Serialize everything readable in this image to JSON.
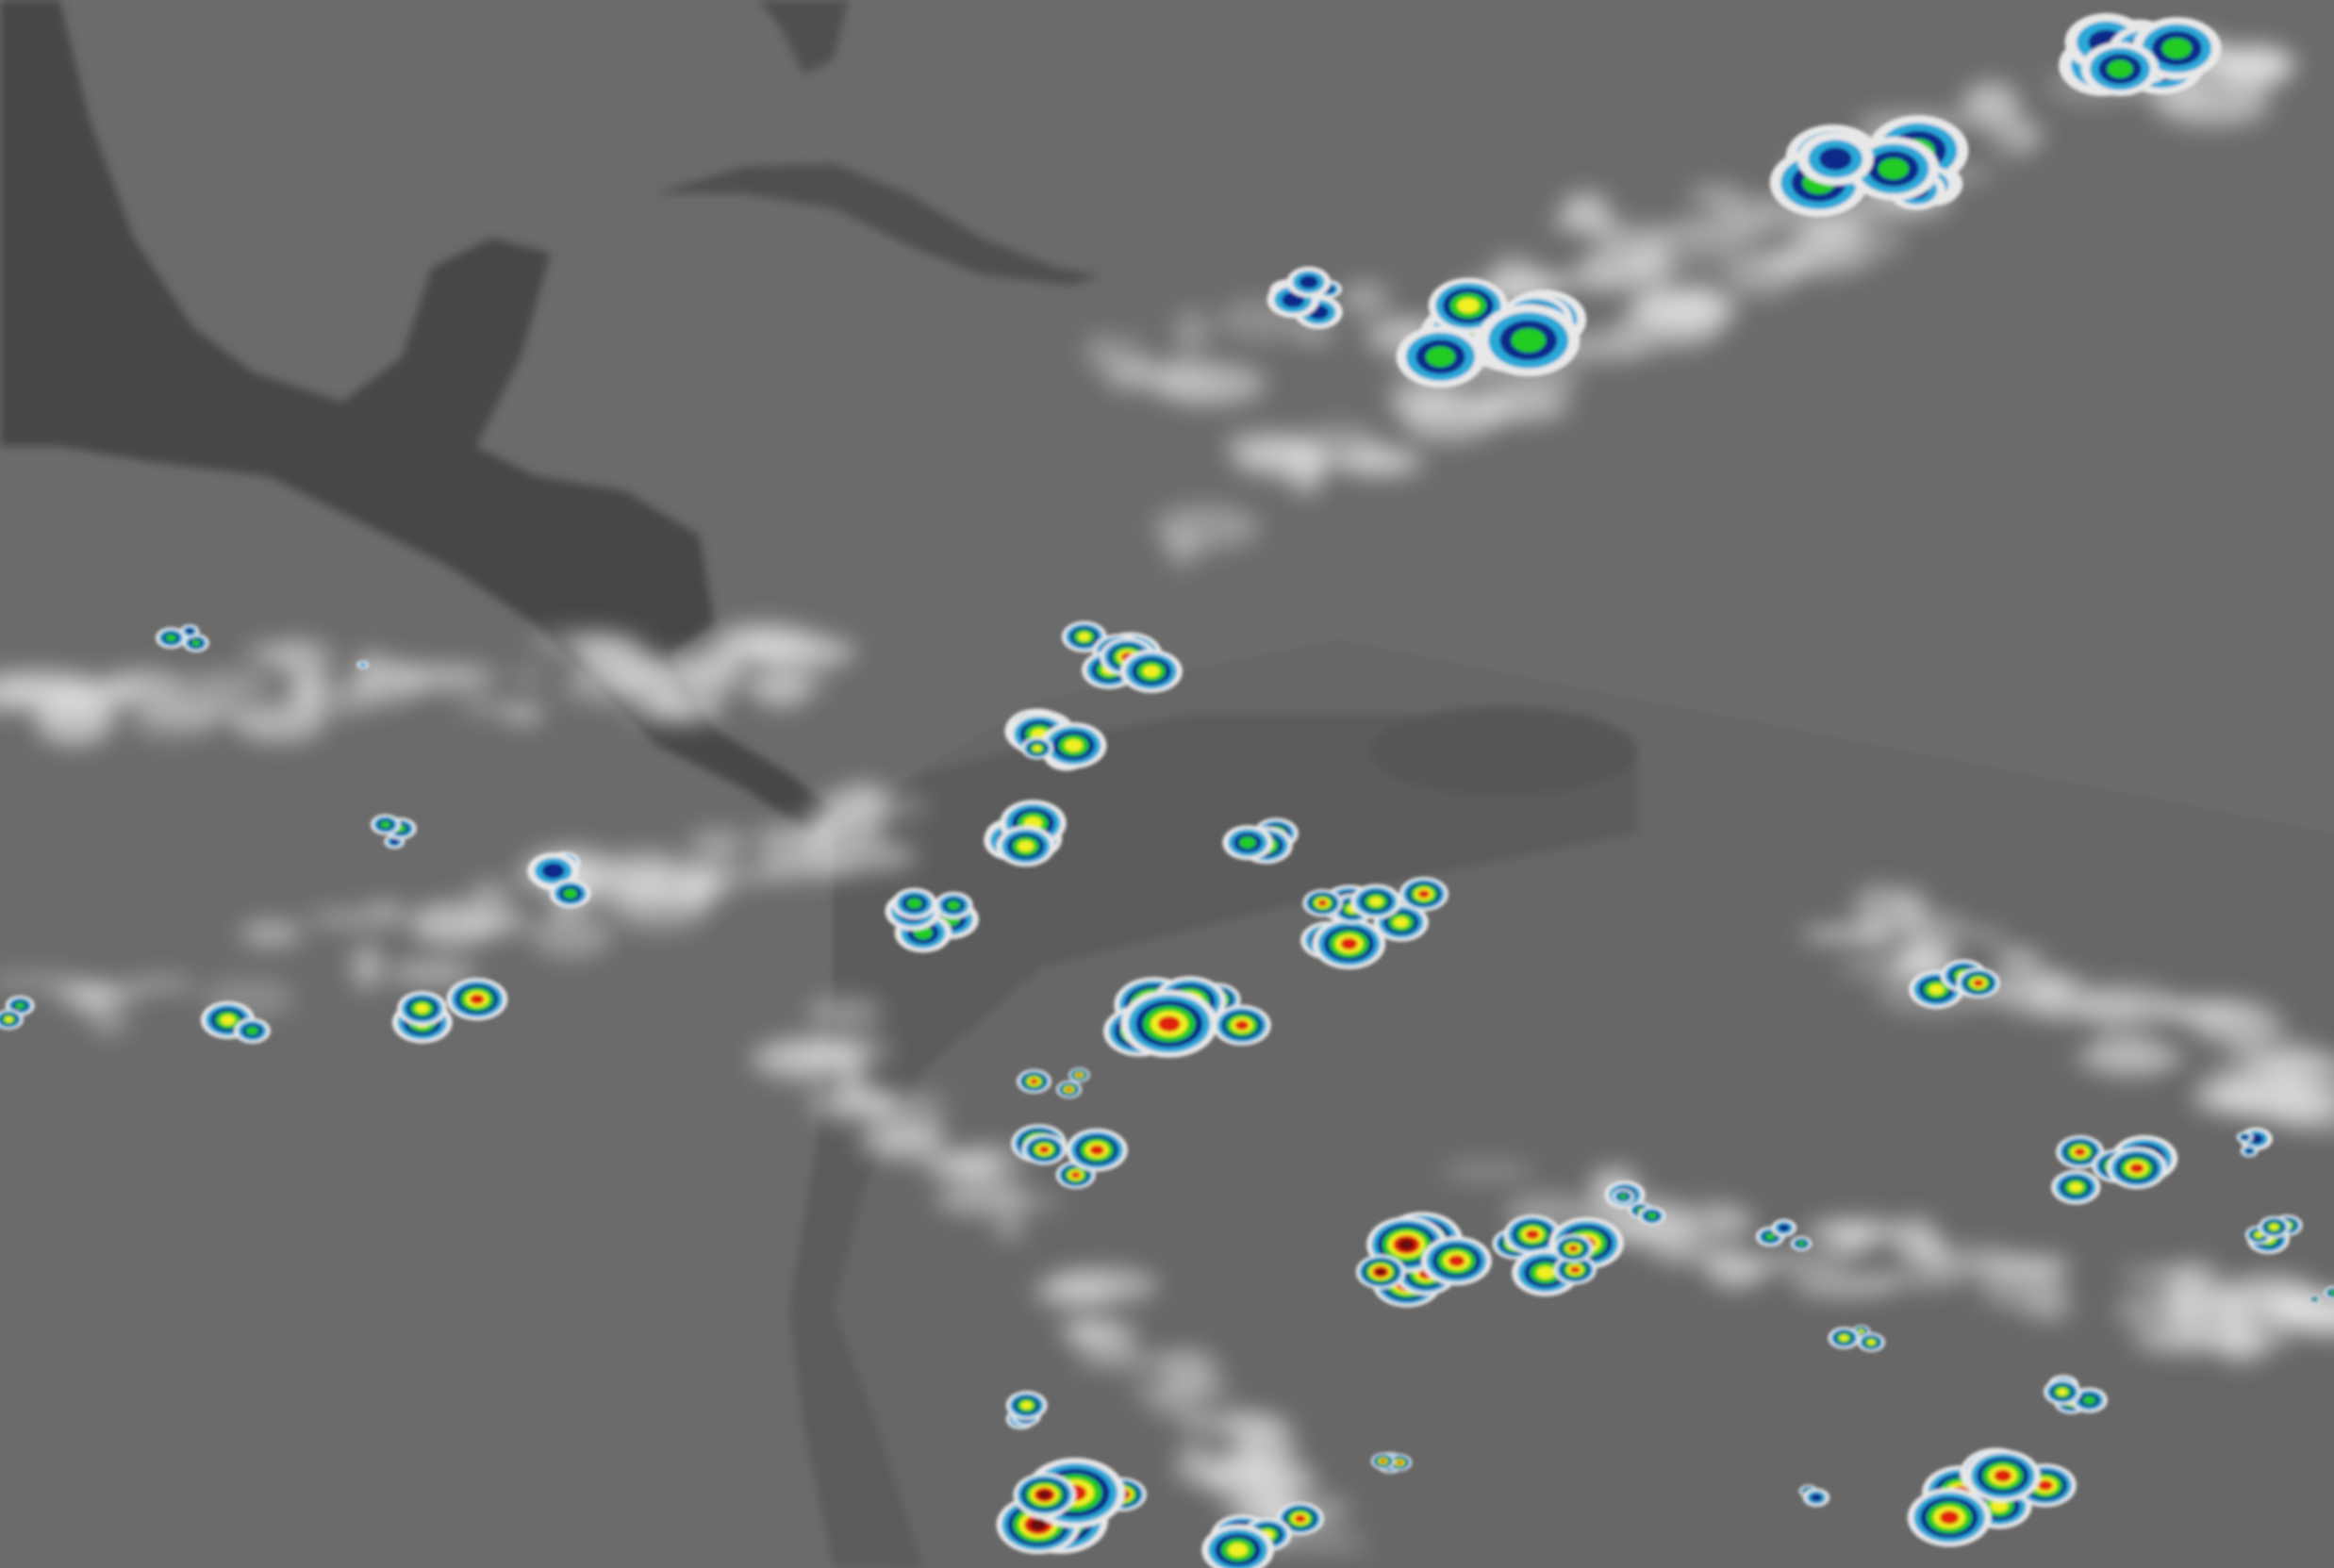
{
  "imagery": {
    "kind": "infrared satellite image with color-enhanced cold cloud tops",
    "palette": {
      "ocean": "#6b6b6b",
      "land": "#4a4a4a",
      "cloud_white": "#e8e8e8",
      "enhance_cyan": "#2aa8d8",
      "enhance_blue": "#0a2a8a",
      "enhance_green": "#22cc22",
      "enhance_yellow": "#f0f020",
      "enhance_red": "#e02010",
      "enhance_darkred": "#6a0a0a"
    }
  }
}
